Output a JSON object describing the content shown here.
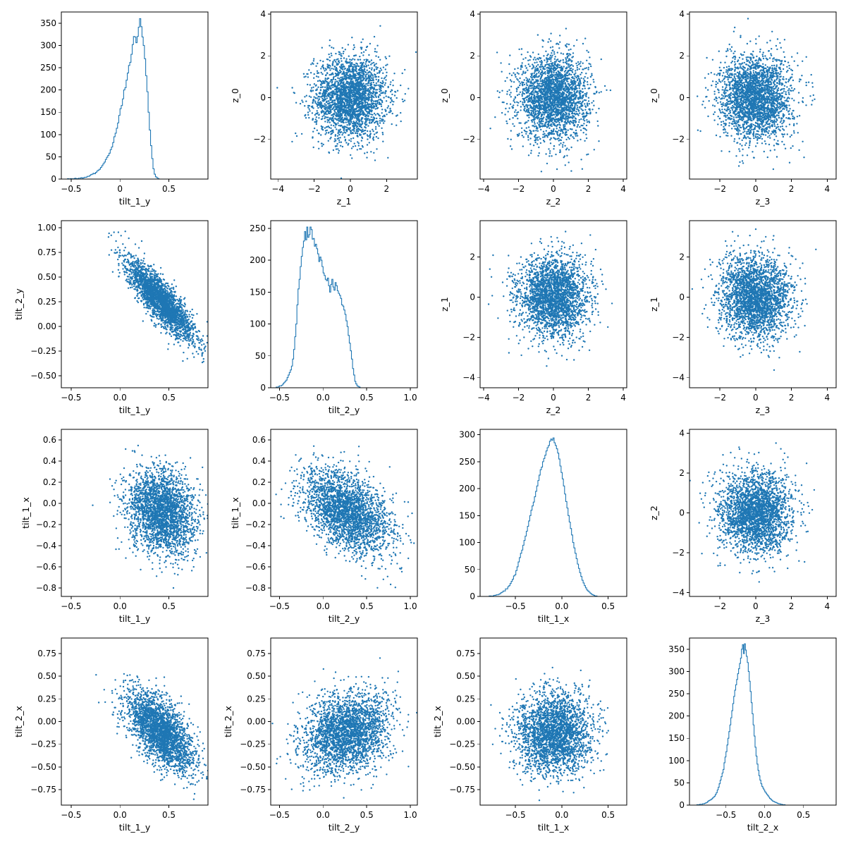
{
  "chart_data": [
    {
      "id": "p00",
      "type": "histogram",
      "row": 0,
      "col": 0,
      "xlabel": "tilt_1_y",
      "ylabel": "",
      "xlim": [
        -0.6,
        0.9
      ],
      "ylim": [
        0,
        375
      ],
      "xticks": [
        -0.5,
        0.0,
        0.5
      ],
      "yticks": [
        0,
        50,
        100,
        150,
        200,
        250,
        300,
        350
      ],
      "bins": {
        "start": -0.55,
        "width": 0.0125,
        "counts": [
          0,
          1,
          0,
          1,
          1,
          0,
          1,
          2,
          1,
          1,
          2,
          2,
          3,
          2,
          3,
          4,
          4,
          6,
          6,
          8,
          10,
          11,
          13,
          12,
          15,
          18,
          20,
          22,
          26,
          30,
          34,
          38,
          44,
          49,
          53,
          58,
          66,
          72,
          82,
          95,
          103,
          114,
          126,
          143,
          158,
          165,
          180,
          200,
          205,
          222,
          238,
          255,
          262,
          280,
          302,
          320,
          319,
          306,
          320,
          341,
          360,
          342,
          319,
          300,
          270,
          232,
          196,
          150,
          110,
          75,
          46,
          23,
          11,
          5,
          3,
          1,
          0
        ]
      }
    },
    {
      "id": "p01",
      "type": "scatter",
      "row": 0,
      "col": 1,
      "xlabel": "z_1",
      "ylabel": "z_0",
      "xlim": [
        -4.4,
        3.7
      ],
      "ylim": [
        -3.9,
        4.1
      ],
      "xticks": [
        -4,
        -2,
        0,
        2
      ],
      "yticks": [
        -2,
        0,
        2,
        4
      ],
      "yticklabels": [
        "−2",
        "0",
        "2",
        "4"
      ],
      "xticklabels": [
        "−4",
        "−2",
        "0",
        "2"
      ],
      "sample": {
        "kind": "gaussian",
        "sx": 1,
        "sy": 1,
        "rho": 0,
        "mx": 0,
        "my": 0,
        "n": 2600
      }
    },
    {
      "id": "p02",
      "type": "scatter",
      "row": 0,
      "col": 2,
      "xlabel": "z_2",
      "ylabel": "z_0",
      "xlim": [
        -4.2,
        4.2
      ],
      "ylim": [
        -3.9,
        4.1
      ],
      "xticks": [
        -4,
        -2,
        0,
        2,
        4
      ],
      "xticklabels": [
        "−4",
        "−2",
        "0",
        "2",
        "4"
      ],
      "yticks": [
        -2,
        0,
        2,
        4
      ],
      "yticklabels": [
        "−2",
        "0",
        "2",
        "4"
      ],
      "sample": {
        "kind": "gaussian",
        "sx": 1,
        "sy": 1,
        "rho": 0,
        "mx": 0,
        "my": 0,
        "n": 2600
      }
    },
    {
      "id": "p03",
      "type": "scatter",
      "row": 0,
      "col": 3,
      "xlabel": "z_3",
      "ylabel": "z_0",
      "xlim": [
        -3.7,
        4.5
      ],
      "ylim": [
        -3.9,
        4.1
      ],
      "xticks": [
        -2,
        0,
        2,
        4
      ],
      "xticklabels": [
        "−2",
        "0",
        "2",
        "4"
      ],
      "yticks": [
        -2,
        0,
        2,
        4
      ],
      "yticklabels": [
        "−2",
        "0",
        "2",
        "4"
      ],
      "sample": {
        "kind": "gaussian",
        "sx": 1,
        "sy": 1,
        "rho": 0,
        "mx": 0,
        "my": 0,
        "n": 2600
      }
    },
    {
      "id": "p10",
      "type": "scatter",
      "row": 1,
      "col": 0,
      "xlabel": "tilt_1_y",
      "ylabel": "tilt_2_y",
      "xlim": [
        -0.6,
        0.9
      ],
      "ylim": [
        -0.62,
        1.07
      ],
      "xticks": [
        -0.5,
        0.0,
        0.5
      ],
      "xticklabels": [
        "−0.5",
        "0.0",
        "0.5"
      ],
      "yticks": [
        -0.5,
        -0.25,
        0.0,
        0.25,
        0.5,
        0.75,
        1.0
      ],
      "yticklabels": [
        "−0.50",
        "−0.25",
        "0.00",
        "0.25",
        "0.50",
        "0.75",
        "1.00"
      ],
      "sample": {
        "kind": "gaussian",
        "sx": 0.17,
        "sy": 0.2,
        "rho": -0.85,
        "mx": 0.42,
        "my": 0.26,
        "n": 2600
      }
    },
    {
      "id": "p11",
      "type": "histogram",
      "row": 1,
      "col": 1,
      "xlabel": "tilt_2_y",
      "ylabel": "",
      "xlim": [
        -0.6,
        1.08
      ],
      "ylim": [
        0,
        262
      ],
      "xticks": [
        -0.5,
        0.0,
        0.5,
        1.0
      ],
      "xticklabels": [
        "−0.5",
        "0.0",
        "0.5",
        "1.0"
      ],
      "yticks": [
        0,
        50,
        100,
        150,
        200,
        250
      ],
      "bins": {
        "start": -0.55,
        "width": 0.0125,
        "counts": [
          0,
          1,
          0,
          2,
          3,
          3,
          4,
          6,
          8,
          10,
          12,
          16,
          20,
          24,
          28,
          34,
          45,
          60,
          80,
          100,
          130,
          155,
          170,
          190,
          206,
          220,
          230,
          245,
          232,
          252,
          236,
          240,
          252,
          248,
          233,
          234,
          222,
          225,
          218,
          210,
          198,
          205,
          200,
          190,
          180,
          176,
          170,
          168,
          172,
          160,
          150,
          162,
          170,
          158,
          153,
          165,
          160,
          152,
          148,
          145,
          140,
          130,
          128,
          122,
          115,
          105,
          96,
          82,
          70,
          58,
          45,
          30,
          20,
          10,
          6,
          3,
          2,
          1,
          0,
          0,
          0,
          0,
          0,
          0,
          0,
          0,
          0,
          0,
          0,
          0,
          0,
          0,
          0,
          0,
          0,
          0,
          0,
          0,
          0,
          0,
          0,
          0,
          0,
          0,
          0,
          0,
          0,
          0,
          0,
          0,
          0,
          0,
          0,
          0,
          0,
          0,
          0,
          0,
          0,
          0,
          0,
          0,
          0,
          0,
          0,
          0,
          0,
          0,
          0
        ]
      }
    },
    {
      "id": "p12",
      "type": "scatter",
      "row": 1,
      "col": 2,
      "xlabel": "z_2",
      "ylabel": "z_1",
      "xlim": [
        -4.2,
        4.2
      ],
      "ylim": [
        -4.5,
        3.8
      ],
      "xticks": [
        -4,
        -2,
        0,
        2,
        4
      ],
      "xticklabels": [
        "−4",
        "−2",
        "0",
        "2",
        "4"
      ],
      "yticks": [
        -4,
        -2,
        0,
        2
      ],
      "yticklabels": [
        "−4",
        "−2",
        "0",
        "2"
      ],
      "sample": {
        "kind": "gaussian",
        "sx": 1,
        "sy": 1,
        "rho": 0,
        "mx": 0,
        "my": 0,
        "n": 2600
      }
    },
    {
      "id": "p13",
      "type": "scatter",
      "row": 1,
      "col": 3,
      "xlabel": "z_3",
      "ylabel": "z_1",
      "xlim": [
        -3.7,
        4.5
      ],
      "ylim": [
        -4.5,
        3.8
      ],
      "xticks": [
        -2,
        0,
        2,
        4
      ],
      "xticklabels": [
        "−2",
        "0",
        "2",
        "4"
      ],
      "yticks": [
        -4,
        -2,
        0,
        2
      ],
      "yticklabels": [
        "−4",
        "−2",
        "0",
        "2"
      ],
      "sample": {
        "kind": "gaussian",
        "sx": 1,
        "sy": 1,
        "rho": 0,
        "mx": 0,
        "my": 0,
        "n": 2600
      }
    },
    {
      "id": "p20",
      "type": "scatter",
      "row": 2,
      "col": 0,
      "xlabel": "tilt_1_y",
      "ylabel": "tilt_1_x",
      "xlim": [
        -0.6,
        0.9
      ],
      "ylim": [
        -0.88,
        0.7
      ],
      "xticks": [
        -0.5,
        0.0,
        0.5
      ],
      "xticklabels": [
        "−0.5",
        "0.0",
        "0.5"
      ],
      "yticks": [
        -0.8,
        -0.6,
        -0.4,
        -0.2,
        0.0,
        0.2,
        0.4,
        0.6
      ],
      "yticklabels": [
        "−0.8",
        "−0.6",
        "−0.4",
        "−0.2",
        "0.0",
        "0.2",
        "0.4",
        "0.6"
      ],
      "sample": {
        "kind": "gaussian",
        "sx": 0.17,
        "sy": 0.2,
        "rho": -0.15,
        "mx": 0.42,
        "my": -0.08,
        "n": 2600
      }
    },
    {
      "id": "p21",
      "type": "scatter",
      "row": 2,
      "col": 1,
      "xlabel": "tilt_2_y",
      "ylabel": "tilt_1_x",
      "xlim": [
        -0.6,
        1.08
      ],
      "ylim": [
        -0.88,
        0.7
      ],
      "xticks": [
        -0.5,
        0.0,
        0.5,
        1.0
      ],
      "xticklabels": [
        "−0.5",
        "0.0",
        "0.5",
        "1.0"
      ],
      "yticks": [
        -0.8,
        -0.6,
        -0.4,
        -0.2,
        0.0,
        0.2,
        0.4,
        0.6
      ],
      "yticklabels": [
        "−0.8",
        "−0.6",
        "−0.4",
        "−0.2",
        "0.0",
        "0.2",
        "0.4",
        "0.6"
      ],
      "sample": {
        "kind": "gaussian",
        "sx": 0.25,
        "sy": 0.2,
        "rho": -0.45,
        "mx": 0.27,
        "my": -0.08,
        "n": 2600
      }
    },
    {
      "id": "p22",
      "type": "histogram",
      "row": 2,
      "col": 2,
      "xlabel": "tilt_1_x",
      "ylabel": "",
      "xlim": [
        -0.88,
        0.7
      ],
      "ylim": [
        0,
        310
      ],
      "xticks": [
        -0.5,
        0.0,
        0.5
      ],
      "xticklabels": [
        "−0.5",
        "0.0",
        "0.5"
      ],
      "yticks": [
        0,
        50,
        100,
        150,
        200,
        250,
        300
      ],
      "bins": {
        "start": -0.82,
        "width": 0.0125,
        "counts": [
          0,
          0,
          0,
          1,
          1,
          0,
          1,
          2,
          2,
          3,
          3,
          4,
          5,
          7,
          8,
          10,
          10,
          14,
          14,
          18,
          20,
          24,
          28,
          32,
          38,
          40,
          48,
          55,
          64,
          72,
          80,
          86,
          95,
          104,
          112,
          121,
          130,
          140,
          150,
          160,
          168,
          175,
          185,
          195,
          205,
          215,
          225,
          235,
          240,
          250,
          256,
          262,
          270,
          276,
          280,
          288,
          292,
          290,
          294,
          285,
          280,
          274,
          266,
          255,
          242,
          230,
          218,
          205,
          190,
          176,
          164,
          150,
          138,
          126,
          114,
          100,
          90,
          80,
          70,
          60,
          52,
          44,
          37,
          30,
          25,
          20,
          16,
          12,
          10,
          8,
          6,
          4,
          3,
          2,
          1,
          1,
          0
        ]
      }
    },
    {
      "id": "p23",
      "type": "scatter",
      "row": 2,
      "col": 3,
      "xlabel": "z_3",
      "ylabel": "z_2",
      "xlim": [
        -3.7,
        4.5
      ],
      "ylim": [
        -4.2,
        4.2
      ],
      "xticks": [
        -2,
        0,
        2,
        4
      ],
      "xticklabels": [
        "−2",
        "0",
        "2",
        "4"
      ],
      "yticks": [
        -4,
        -2,
        0,
        2,
        4
      ],
      "yticklabels": [
        "−4",
        "−2",
        "0",
        "2",
        "4"
      ],
      "sample": {
        "kind": "gaussian",
        "sx": 1,
        "sy": 1,
        "rho": 0,
        "mx": 0,
        "my": 0,
        "n": 2600
      }
    },
    {
      "id": "p30",
      "type": "scatter",
      "row": 3,
      "col": 0,
      "xlabel": "tilt_1_y",
      "ylabel": "tilt_2_x",
      "xlim": [
        -0.6,
        0.9
      ],
      "ylim": [
        -0.92,
        0.92
      ],
      "xticks": [
        -0.5,
        0.0,
        0.5
      ],
      "xticklabels": [
        "−0.5",
        "0.0",
        "0.5"
      ],
      "yticks": [
        -0.75,
        -0.5,
        -0.25,
        0.0,
        0.25,
        0.5,
        0.75
      ],
      "yticklabels": [
        "−0.75",
        "−0.50",
        "−0.25",
        "0.00",
        "0.25",
        "0.50",
        "0.75"
      ],
      "sample": {
        "kind": "gaussian",
        "sx": 0.17,
        "sy": 0.22,
        "rho": -0.6,
        "mx": 0.42,
        "my": -0.12,
        "n": 2600
      }
    },
    {
      "id": "p31",
      "type": "scatter",
      "row": 3,
      "col": 1,
      "xlabel": "tilt_2_y",
      "ylabel": "tilt_2_x",
      "xlim": [
        -0.6,
        1.08
      ],
      "ylim": [
        -0.92,
        0.92
      ],
      "xticks": [
        -0.5,
        0.0,
        0.5,
        1.0
      ],
      "xticklabels": [
        "−0.5",
        "0.0",
        "0.5",
        "1.0"
      ],
      "yticks": [
        -0.75,
        -0.5,
        -0.25,
        0.0,
        0.25,
        0.5,
        0.75
      ],
      "yticklabels": [
        "−0.75",
        "−0.50",
        "−0.25",
        "0.00",
        "0.25",
        "0.50",
        "0.75"
      ],
      "sample": {
        "kind": "gaussian",
        "sx": 0.25,
        "sy": 0.22,
        "rho": 0.2,
        "mx": 0.27,
        "my": -0.12,
        "n": 2600
      }
    },
    {
      "id": "p32",
      "type": "scatter",
      "row": 3,
      "col": 2,
      "xlabel": "tilt_1_x",
      "ylabel": "tilt_2_x",
      "xlim": [
        -0.88,
        0.7
      ],
      "ylim": [
        -0.92,
        0.92
      ],
      "xticks": [
        -0.5,
        0.0,
        0.5
      ],
      "xticklabels": [
        "−0.5",
        "0.0",
        "0.5"
      ],
      "yticks": [
        -0.75,
        -0.5,
        -0.25,
        0.0,
        0.25,
        0.5,
        0.75
      ],
      "yticklabels": [
        "−0.75",
        "−0.50",
        "−0.25",
        "0.00",
        "0.25",
        "0.50",
        "0.75"
      ],
      "sample": {
        "kind": "gaussian",
        "sx": 0.2,
        "sy": 0.22,
        "rho": 0.0,
        "mx": -0.08,
        "my": -0.12,
        "n": 2600
      }
    },
    {
      "id": "p33",
      "type": "histogram",
      "row": 3,
      "col": 3,
      "xlabel": "tilt_2_x",
      "ylabel": "",
      "xlim": [
        -0.97,
        0.92
      ],
      "ylim": [
        0,
        375
      ],
      "xticks": [
        -0.5,
        0.0,
        0.5
      ],
      "xticklabels": [
        "−0.5",
        "0.0",
        "0.5"
      ],
      "yticks": [
        0,
        50,
        100,
        150,
        200,
        250,
        300,
        350
      ],
      "bins": {
        "start": -0.9,
        "width": 0.0125,
        "counts": [
          0,
          0,
          1,
          1,
          1,
          2,
          2,
          2,
          3,
          3,
          4,
          5,
          6,
          8,
          10,
          11,
          12,
          14,
          16,
          18,
          20,
          24,
          28,
          34,
          40,
          48,
          56,
          64,
          72,
          80,
          95,
          108,
          120,
          135,
          150,
          165,
          180,
          196,
          212,
          228,
          244,
          258,
          270,
          282,
          295,
          306,
          318,
          330,
          350,
          360,
          340,
          362,
          348,
          334,
          320,
          300,
          278,
          255,
          230,
          205,
          180,
          155,
          130,
          110,
          92,
          78,
          66,
          56,
          48,
          42,
          38,
          34,
          30,
          27,
          24,
          21,
          18,
          15,
          13,
          11,
          9,
          8,
          7,
          6,
          5,
          4,
          3,
          3,
          2,
          2,
          1,
          1,
          1,
          0,
          0,
          0,
          0,
          0,
          0,
          0,
          0,
          0,
          0,
          0,
          0,
          0,
          0,
          0,
          0,
          0,
          0,
          0,
          0,
          0,
          0,
          0,
          0,
          0,
          0,
          0,
          0,
          0,
          0,
          0,
          0,
          0,
          0,
          0,
          0,
          0,
          0,
          0,
          0,
          0,
          0,
          0,
          0,
          0,
          0,
          0,
          0,
          0,
          0,
          0
        ]
      }
    }
  ]
}
